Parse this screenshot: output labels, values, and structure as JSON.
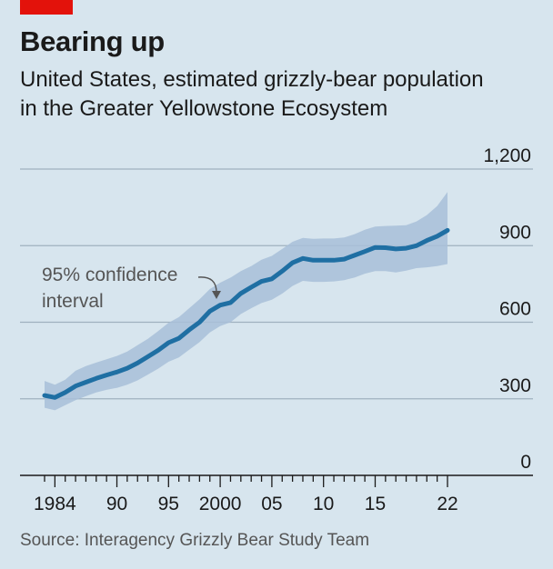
{
  "header": {
    "title": "Bearing up",
    "subtitle_line1": "United States, estimated grizzly-bear population",
    "subtitle_line2": "in the Greater Yellowstone Ecosystem"
  },
  "footer": {
    "source": "Source: Interagency Grizzly Bear Study Team"
  },
  "annotation": {
    "line1": "95% confidence",
    "line2": "interval"
  },
  "colors": {
    "background": "#d7e5ee",
    "line": "#1f6fa3",
    "band": "#a8bfd8",
    "accent": "#e3120b"
  },
  "chart_data": {
    "type": "line",
    "x_tick_labels": [
      "1984",
      "90",
      "95",
      "2000",
      "05",
      "10",
      "15",
      "22"
    ],
    "x_tick_values": [
      1984,
      1990,
      1995,
      2000,
      2005,
      2010,
      2015,
      2022
    ],
    "y_tick_labels": [
      "0",
      "300",
      "600",
      "900",
      "1,200"
    ],
    "y_tick_values": [
      0,
      300,
      600,
      900,
      1200
    ],
    "xlim": [
      1983,
      2022
    ],
    "ylim": [
      0,
      1200
    ],
    "grid": "horizontal",
    "series": [
      {
        "x": [
          1983,
          1984,
          1985,
          1986,
          1987,
          1988,
          1989,
          1990,
          1991,
          1992,
          1993,
          1994,
          1995,
          1996,
          1997,
          1998,
          1999,
          2000,
          2001,
          2002,
          2003,
          2004,
          2005,
          2006,
          2007,
          2008,
          2009,
          2010,
          2011,
          2012,
          2013,
          2014,
          2015,
          2016,
          2017,
          2018,
          2019,
          2020,
          2021,
          2022
        ],
        "y": [
          313,
          305,
          325,
          350,
          365,
          380,
          393,
          405,
          420,
          440,
          465,
          490,
          520,
          537,
          570,
          600,
          643,
          667,
          677,
          713,
          737,
          760,
          770,
          800,
          833,
          850,
          843,
          843,
          843,
          847,
          862,
          877,
          893,
          892,
          887,
          890,
          900,
          920,
          937,
          960
        ]
      }
    ],
    "confidence_interval": {
      "lower": [
        265,
        255,
        275,
        295,
        310,
        325,
        335,
        343,
        355,
        372,
        395,
        418,
        445,
        462,
        492,
        522,
        560,
        585,
        600,
        632,
        655,
        675,
        688,
        712,
        742,
        762,
        758,
        758,
        760,
        765,
        775,
        790,
        800,
        800,
        795,
        802,
        812,
        815,
        820,
        828
      ],
      "upper": [
        370,
        355,
        375,
        410,
        428,
        442,
        455,
        468,
        485,
        510,
        535,
        565,
        598,
        620,
        655,
        690,
        730,
        755,
        775,
        800,
        820,
        845,
        860,
        887,
        915,
        930,
        927,
        928,
        928,
        932,
        945,
        962,
        975,
        977,
        978,
        980,
        995,
        1020,
        1055,
        1110
      ]
    }
  }
}
